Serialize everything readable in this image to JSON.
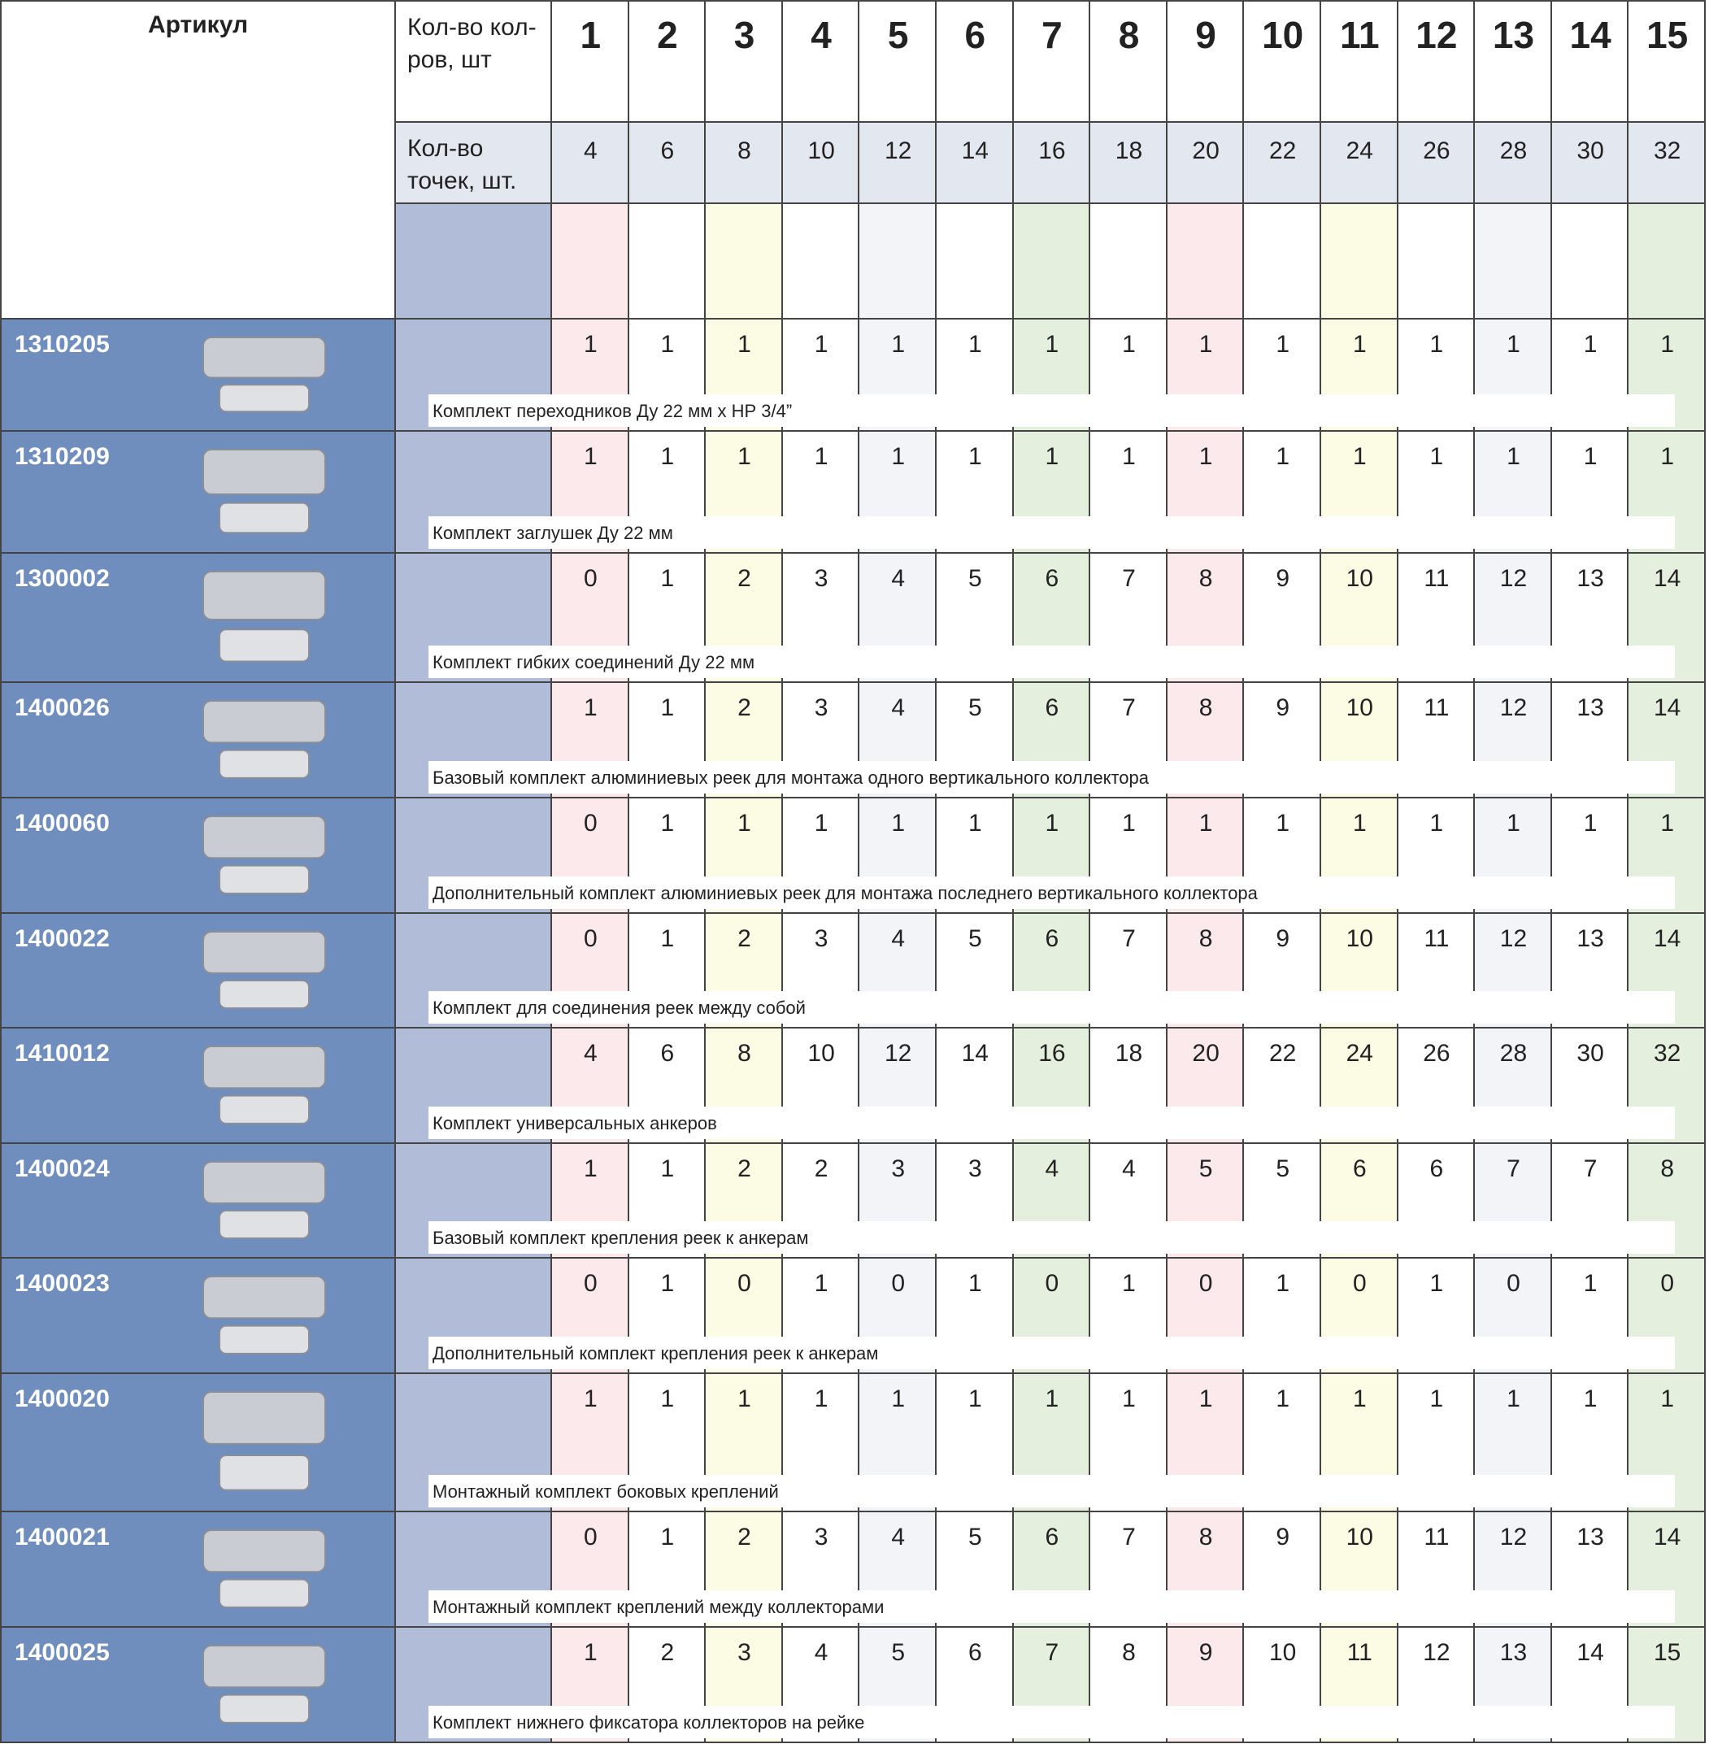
{
  "header": {
    "article_label": "Артикул",
    "collectors_label": "Кол-во кол-ров, шт",
    "points_label": "Кол-во точек, шт.",
    "collectors": [
      1,
      2,
      3,
      4,
      5,
      6,
      7,
      8,
      9,
      10,
      11,
      12,
      13,
      14,
      15
    ],
    "points": [
      4,
      6,
      8,
      10,
      12,
      14,
      16,
      18,
      20,
      22,
      24,
      26,
      28,
      30,
      32
    ]
  },
  "rows": [
    {
      "article": "1310205",
      "description": "Комплект переходников Ду 22 мм х НР 3/4”",
      "values": [
        1,
        1,
        1,
        1,
        1,
        1,
        1,
        1,
        1,
        1,
        1,
        1,
        1,
        1,
        1
      ]
    },
    {
      "article": "1310209",
      "description": "Комплект заглушек Ду 22 мм",
      "values": [
        1,
        1,
        1,
        1,
        1,
        1,
        1,
        1,
        1,
        1,
        1,
        1,
        1,
        1,
        1
      ]
    },
    {
      "article": "1300002",
      "description": "Комплект гибких соединений Ду 22 мм",
      "values": [
        0,
        1,
        2,
        3,
        4,
        5,
        6,
        7,
        8,
        9,
        10,
        11,
        12,
        13,
        14
      ]
    },
    {
      "article": "1400026",
      "description": "Базовый комплект алюминиевых реек для монтажа одного вертикального коллектора",
      "values": [
        1,
        1,
        2,
        3,
        4,
        5,
        6,
        7,
        8,
        9,
        10,
        11,
        12,
        13,
        14
      ]
    },
    {
      "article": "1400060",
      "description": "Дополнительный комплект алюминиевых реек для монтажа последнего вертикального коллектора",
      "values": [
        0,
        1,
        1,
        1,
        1,
        1,
        1,
        1,
        1,
        1,
        1,
        1,
        1,
        1,
        1
      ]
    },
    {
      "article": "1400022",
      "description": "Комплект для соединения реек между собой",
      "values": [
        0,
        1,
        2,
        3,
        4,
        5,
        6,
        7,
        8,
        9,
        10,
        11,
        12,
        13,
        14
      ]
    },
    {
      "article": "1410012",
      "description": "Комплект универсальных анкеров",
      "values": [
        4,
        6,
        8,
        10,
        12,
        14,
        16,
        18,
        20,
        22,
        24,
        26,
        28,
        30,
        32
      ]
    },
    {
      "article": "1400024",
      "description": "Базовый комплект крепления реек к анкерам",
      "values": [
        1,
        1,
        2,
        2,
        3,
        3,
        4,
        4,
        5,
        5,
        6,
        6,
        7,
        7,
        8
      ]
    },
    {
      "article": "1400023",
      "description": "Дополнительный комплект крепления реек к анкерам",
      "values": [
        0,
        1,
        0,
        1,
        0,
        1,
        0,
        1,
        0,
        1,
        0,
        1,
        0,
        1,
        0
      ]
    },
    {
      "article": "1400020",
      "description": "Монтажный комплект боковых креплений",
      "values": [
        1,
        1,
        1,
        1,
        1,
        1,
        1,
        1,
        1,
        1,
        1,
        1,
        1,
        1,
        1
      ]
    },
    {
      "article": "1400021",
      "description": "Монтажный комплект креплений между коллекторами",
      "values": [
        0,
        1,
        2,
        3,
        4,
        5,
        6,
        7,
        8,
        9,
        10,
        11,
        12,
        13,
        14
      ]
    },
    {
      "article": "1400025",
      "description": "Комплект нижнего фиксатора коллекторов на рейке",
      "values": [
        1,
        2,
        3,
        4,
        5,
        6,
        7,
        8,
        9,
        10,
        11,
        12,
        13,
        14,
        15
      ]
    }
  ]
}
